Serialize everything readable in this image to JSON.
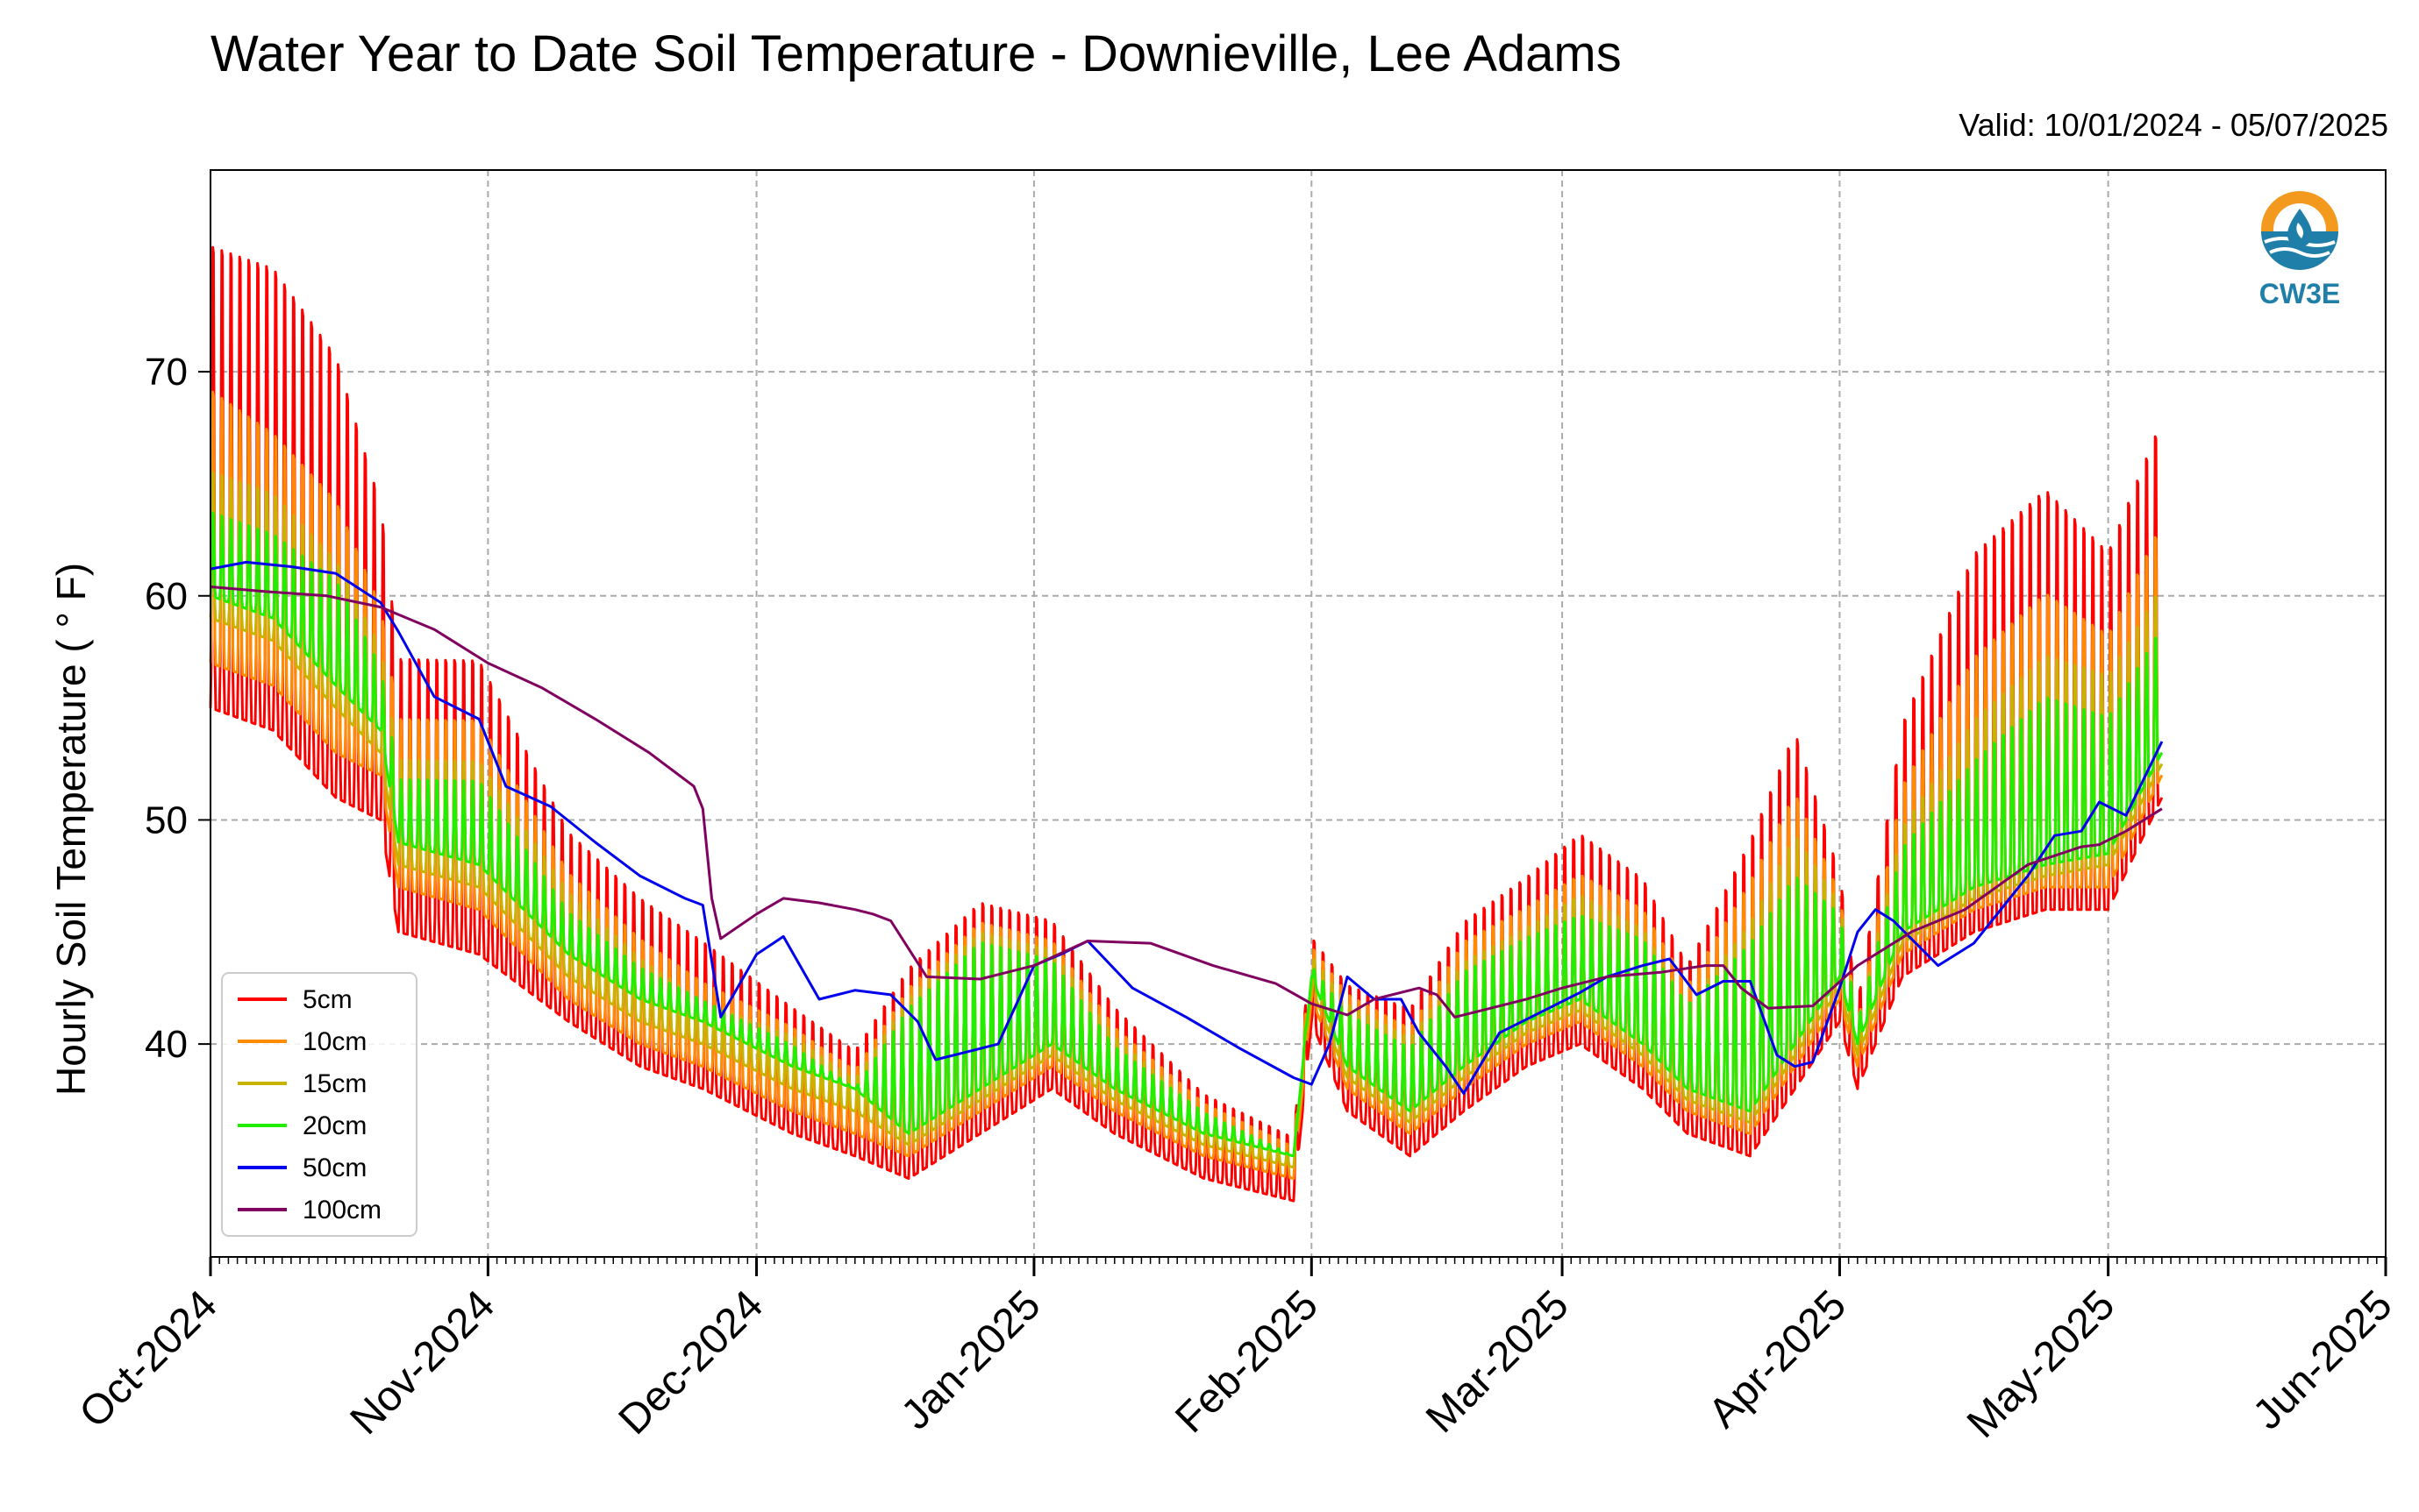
{
  "chart_data": {
    "type": "line",
    "title": "Water Year to Date Soil Temperature - Downieville, Lee Adams",
    "subtitle": "Valid: 10/01/2024 - 05/07/2025",
    "ylabel": "Hourly Soil Temperature ( $^\\circ$F)",
    "ylabel_display": "Hourly Soil Temperature ( ° F)",
    "xlabel": "",
    "xlim": [
      "2024-10-01",
      "2025-06-01"
    ],
    "ylim": [
      30.5,
      79
    ],
    "x_ticks": [
      "Oct-2024",
      "Nov-2024",
      "Dec-2024",
      "Jan-2025",
      "Feb-2025",
      "Mar-2025",
      "Apr-2025",
      "May-2025",
      "Jun-2025"
    ],
    "x_tick_dates": [
      "2024-10-01",
      "2024-11-01",
      "2024-12-01",
      "2025-01-01",
      "2025-02-01",
      "2025-03-01",
      "2025-04-01",
      "2025-05-01",
      "2025-06-01"
    ],
    "y_ticks": [
      40,
      50,
      60,
      70
    ],
    "grid": true,
    "legend_position": "lower-left",
    "logo_text": "CW3E",
    "series": [
      {
        "name": "5cm",
        "color": "#ff0000",
        "envelope": {
          "x": [
            "2024-10-01",
            "2024-10-08",
            "2024-10-15",
            "2024-10-20",
            "2024-10-22",
            "2024-10-31",
            "2024-11-10",
            "2024-11-18",
            "2024-11-25",
            "2024-12-05",
            "2024-12-12",
            "2024-12-18",
            "2024-12-26",
            "2025-01-03",
            "2025-01-10",
            "2025-01-20",
            "2025-01-30",
            "2025-02-01",
            "2025-02-05",
            "2025-02-12",
            "2025-02-18",
            "2025-02-25",
            "2025-03-03",
            "2025-03-10",
            "2025-03-15",
            "2025-03-22",
            "2025-03-27",
            "2025-04-01",
            "2025-04-03",
            "2025-04-08",
            "2025-04-16",
            "2025-04-24",
            "2025-05-01",
            "2025-05-07"
          ],
          "high": [
            77,
            76,
            72,
            65,
            58,
            58,
            50,
            47,
            45,
            42,
            40,
            44,
            47,
            46,
            42,
            38,
            36,
            45,
            43,
            42,
            46,
            48,
            50,
            48,
            44,
            50,
            55,
            48,
            42,
            55,
            63,
            66,
            63,
            69
          ],
          "low": [
            55,
            54,
            51,
            50,
            45,
            44,
            41,
            39,
            38,
            36,
            35,
            34,
            36,
            38,
            36,
            34,
            33,
            41,
            37,
            35,
            37,
            39,
            40,
            38,
            36,
            35,
            38,
            41,
            38,
            43,
            45,
            46,
            46,
            51
          ]
        }
      },
      {
        "name": "10cm",
        "color": "#ff8c00",
        "envelope": {
          "x": [
            "2024-10-01",
            "2024-10-08",
            "2024-10-15",
            "2024-10-20",
            "2024-10-22",
            "2024-10-31",
            "2024-11-10",
            "2024-11-18",
            "2024-11-25",
            "2024-12-05",
            "2024-12-12",
            "2024-12-18",
            "2024-12-26",
            "2025-01-03",
            "2025-01-10",
            "2025-01-20",
            "2025-01-30",
            "2025-02-01",
            "2025-02-05",
            "2025-02-12",
            "2025-02-18",
            "2025-02-25",
            "2025-03-03",
            "2025-03-10",
            "2025-03-15",
            "2025-03-22",
            "2025-03-27",
            "2025-04-01",
            "2025-04-03",
            "2025-04-08",
            "2025-04-16",
            "2025-04-24",
            "2025-05-01",
            "2025-05-07"
          ],
          "high": [
            70,
            68,
            65,
            60,
            55,
            55,
            48,
            45,
            43,
            41,
            39,
            43,
            46,
            45,
            41,
            37.5,
            35.5,
            44.5,
            42.5,
            41,
            45,
            46.5,
            48,
            46.5,
            43,
            48,
            52,
            47,
            41,
            52,
            58,
            61,
            59,
            64
          ],
          "low": [
            57,
            56,
            53,
            52,
            47,
            46,
            42,
            40,
            39,
            37,
            36,
            35,
            37,
            39,
            37,
            35,
            34,
            42,
            38,
            36,
            38,
            40,
            41,
            39,
            37,
            36,
            39,
            42,
            39,
            44,
            46,
            47,
            47,
            52
          ]
        }
      },
      {
        "name": "15cm",
        "color": "#c8b400",
        "envelope": {
          "x": [
            "2024-10-01",
            "2024-10-08",
            "2024-10-15",
            "2024-10-20",
            "2024-10-22",
            "2024-10-31",
            "2024-11-10",
            "2024-11-18",
            "2024-11-25",
            "2024-12-05",
            "2024-12-12",
            "2024-12-18",
            "2024-12-26",
            "2025-01-03",
            "2025-01-10",
            "2025-01-20",
            "2025-01-30",
            "2025-02-01",
            "2025-02-05",
            "2025-02-12",
            "2025-02-18",
            "2025-02-25",
            "2025-03-03",
            "2025-03-10",
            "2025-03-15",
            "2025-03-22",
            "2025-03-27",
            "2025-04-01",
            "2025-04-03",
            "2025-04-08",
            "2025-04-16",
            "2025-04-24",
            "2025-05-01",
            "2025-05-07"
          ],
          "high": [
            66,
            65,
            62,
            58,
            53,
            53,
            47,
            44,
            42,
            40.5,
            38.5,
            42.5,
            45.5,
            44.5,
            40.5,
            37,
            35,
            44,
            42,
            40.5,
            44,
            45.5,
            47,
            45.5,
            42,
            46,
            50,
            46.5,
            41,
            50,
            55,
            58,
            57,
            61
          ],
          "low": [
            59,
            58,
            55,
            53,
            48,
            47,
            43,
            41,
            40,
            38,
            37,
            35.5,
            37.5,
            39.5,
            37.5,
            35.5,
            34.5,
            42.5,
            38.5,
            36.5,
            38.5,
            40.5,
            41.5,
            39.5,
            37.5,
            36.5,
            39.5,
            42.5,
            39.5,
            44.5,
            46.5,
            47.5,
            48,
            52.5
          ]
        }
      },
      {
        "name": "20cm",
        "color": "#22ee00",
        "envelope": {
          "x": [
            "2024-10-01",
            "2024-10-08",
            "2024-10-15",
            "2024-10-20",
            "2024-10-22",
            "2024-10-31",
            "2024-11-10",
            "2024-11-18",
            "2024-11-25",
            "2024-12-05",
            "2024-12-12",
            "2024-12-18",
            "2024-12-26",
            "2025-01-03",
            "2025-01-10",
            "2025-01-20",
            "2025-01-30",
            "2025-02-01",
            "2025-02-05",
            "2025-02-12",
            "2025-02-18",
            "2025-02-25",
            "2025-03-03",
            "2025-03-10",
            "2025-03-15",
            "2025-03-22",
            "2025-03-27",
            "2025-04-01",
            "2025-04-03",
            "2025-04-08",
            "2025-04-16",
            "2025-04-24",
            "2025-05-01",
            "2025-05-07"
          ],
          "high": [
            64,
            63,
            61,
            57,
            52,
            52,
            46,
            43.5,
            42,
            40,
            38,
            42,
            45,
            44,
            40,
            37,
            35,
            43.5,
            41.5,
            40,
            43.5,
            45,
            46,
            45,
            42,
            45,
            48,
            46,
            41,
            49,
            53,
            56,
            55,
            59
          ],
          "low": [
            60,
            59,
            56,
            54,
            49,
            48,
            44,
            42,
            41,
            39,
            38,
            36,
            38,
            40,
            38,
            36,
            35,
            43,
            39,
            37,
            39,
            41,
            42,
            40,
            38,
            37,
            40,
            43,
            40,
            45,
            47,
            48,
            48.5,
            53
          ]
        }
      },
      {
        "name": "50cm",
        "color": "#0000ee",
        "x": [
          "2024-10-01",
          "2024-10-05",
          "2024-10-10",
          "2024-10-15",
          "2024-10-20",
          "2024-10-22",
          "2024-10-26",
          "2024-10-31",
          "2024-11-03",
          "2024-11-08",
          "2024-11-13",
          "2024-11-18",
          "2024-11-23",
          "2024-11-25",
          "2024-11-27",
          "2024-12-01",
          "2024-12-04",
          "2024-12-08",
          "2024-12-12",
          "2024-12-16",
          "2024-12-19",
          "2024-12-21",
          "2024-12-25",
          "2024-12-28",
          "2025-01-01",
          "2025-01-04",
          "2025-01-07",
          "2025-01-12",
          "2025-01-18",
          "2025-01-24",
          "2025-01-30",
          "2025-02-01",
          "2025-02-03",
          "2025-02-05",
          "2025-02-08",
          "2025-02-11",
          "2025-02-13",
          "2025-02-16",
          "2025-02-18",
          "2025-02-22",
          "2025-02-27",
          "2025-03-03",
          "2025-03-06",
          "2025-03-10",
          "2025-03-13",
          "2025-03-16",
          "2025-03-19",
          "2025-03-22",
          "2025-03-25",
          "2025-03-27",
          "2025-03-29",
          "2025-04-01",
          "2025-04-03",
          "2025-04-05",
          "2025-04-07",
          "2025-04-12",
          "2025-04-16",
          "2025-04-22",
          "2025-04-25",
          "2025-04-28",
          "2025-04-30",
          "2025-05-03",
          "2025-05-07"
        ],
        "y": [
          61.2,
          61.5,
          61.3,
          61,
          59.7,
          58.4,
          55.5,
          54.5,
          51.5,
          50.6,
          49,
          47.5,
          46.5,
          46.2,
          41.2,
          44,
          44.8,
          42,
          42.4,
          42.2,
          41,
          39.3,
          39.7,
          40,
          43.5,
          44,
          44.6,
          42.5,
          41.2,
          39.8,
          38.5,
          38.2,
          40,
          43,
          42,
          42,
          40.5,
          39,
          37.8,
          40.5,
          41.5,
          42.3,
          43,
          43.5,
          43.8,
          42.2,
          42.8,
          42.8,
          39.5,
          39,
          39.2,
          42.5,
          45,
          46,
          45.5,
          43.5,
          44.5,
          47.5,
          49.3,
          49.5,
          50.8,
          50.2,
          53.5
        ]
      },
      {
        "name": "100cm",
        "color": "#800060",
        "x": [
          "2024-10-01",
          "2024-10-07",
          "2024-10-14",
          "2024-10-20",
          "2024-10-26",
          "2024-11-01",
          "2024-11-07",
          "2024-11-13",
          "2024-11-19",
          "2024-11-24",
          "2024-11-25",
          "2024-11-26",
          "2024-11-27",
          "2024-12-01",
          "2024-12-04",
          "2024-12-08",
          "2024-12-12",
          "2024-12-14",
          "2024-12-16",
          "2024-12-20",
          "2024-12-26",
          "2025-01-01",
          "2025-01-07",
          "2025-01-14",
          "2025-01-21",
          "2025-01-28",
          "2025-02-01",
          "2025-02-05",
          "2025-02-08",
          "2025-02-13",
          "2025-02-15",
          "2025-02-17",
          "2025-02-20",
          "2025-02-25",
          "2025-03-01",
          "2025-03-06",
          "2025-03-12",
          "2025-03-17",
          "2025-03-19",
          "2025-03-21",
          "2025-03-24",
          "2025-03-29",
          "2025-04-03",
          "2025-04-09",
          "2025-04-15",
          "2025-04-22",
          "2025-04-28",
          "2025-04-30",
          "2025-05-03",
          "2025-05-07"
        ],
        "y": [
          60.4,
          60.2,
          60,
          59.5,
          58.5,
          57,
          55.9,
          54.5,
          53,
          51.5,
          50.5,
          46.5,
          44.7,
          45.8,
          46.5,
          46.3,
          46,
          45.8,
          45.5,
          43,
          42.9,
          43.5,
          44.6,
          44.5,
          43.5,
          42.7,
          41.8,
          41.3,
          42,
          42.5,
          42.2,
          41.2,
          41.5,
          42,
          42.5,
          43,
          43.2,
          43.5,
          43.5,
          42.5,
          41.6,
          41.7,
          43.5,
          45,
          46,
          48,
          48.8,
          48.9,
          49.5,
          50.5
        ]
      }
    ]
  }
}
